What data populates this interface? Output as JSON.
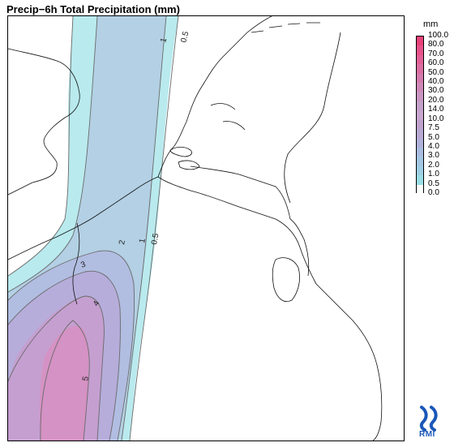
{
  "title": "Precip−6h Total Precipitation (mm)",
  "legend": {
    "unit": "mm",
    "levels": [
      {
        "label": "100.0",
        "color": "#e8437a"
      },
      {
        "label": "80.0",
        "color": "#e8528a"
      },
      {
        "label": "70.0",
        "color": "#e26097"
      },
      {
        "label": "60.0",
        "color": "#dc6ea3"
      },
      {
        "label": "50.0",
        "color": "#d57bae"
      },
      {
        "label": "40.0",
        "color": "#cf89b8"
      },
      {
        "label": "30.0",
        "color": "#c996c1"
      },
      {
        "label": "20.0",
        "color": "#c3a1c9"
      },
      {
        "label": "14.0",
        "color": "#c9a6cf"
      },
      {
        "label": "10.0",
        "color": "#bfa3cd"
      },
      {
        "label": "7.5",
        "color": "#b8a9d3"
      },
      {
        "label": "5.0",
        "color": "#b0b2da"
      },
      {
        "label": "4.0",
        "color": "#a9bde0"
      },
      {
        "label": "3.0",
        "color": "#a3c6e2"
      },
      {
        "label": "2.0",
        "color": "#9ecfe5"
      },
      {
        "label": "1.0",
        "color": "#9adee6"
      },
      {
        "label": "0.5",
        "color": "#ffffff"
      },
      {
        "label": "0.0",
        "color": "#ffffff"
      }
    ]
  },
  "contour_labels": [
    "1",
    "0.5",
    "2",
    "1",
    "0.5",
    "3",
    "4",
    "5"
  ],
  "logo": {
    "text": "RMI",
    "color": "#1a57b8"
  },
  "map_colors": {
    "shade_05": "#b9eaee",
    "shade_1": "#b3d0e4",
    "shade_2": "#b1bde1",
    "shade_3": "#b6addb",
    "shade_4": "#c59fd0",
    "shade_5": "#d592c4"
  }
}
